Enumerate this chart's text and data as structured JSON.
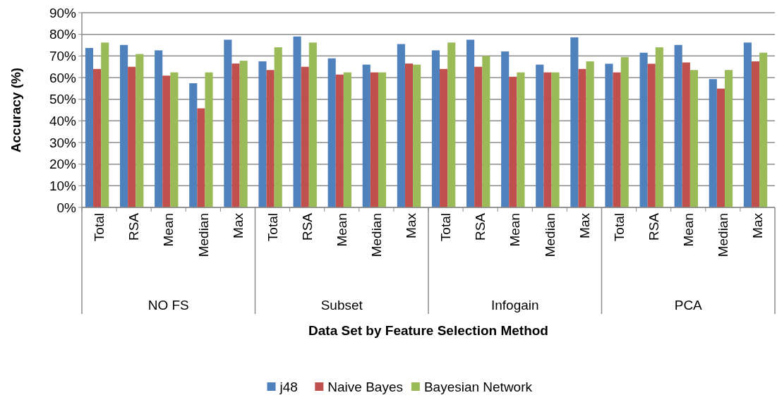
{
  "chart_data": {
    "type": "bar",
    "xlabel": "Data Set by Feature Selection Method",
    "ylabel": "Accuracy (%)",
    "categories": [
      "Total",
      "RSA",
      "Mean",
      "Median",
      "Max",
      "Total",
      "RSA",
      "Mean",
      "Median",
      "Max",
      "Total",
      "RSA",
      "Mean",
      "Median",
      "Max",
      "Total",
      "RSA",
      "Mean",
      "Median",
      "Max"
    ],
    "annotations": [
      "NO FS",
      "Subset",
      "Infogain",
      "PCA"
    ],
    "series": [
      {
        "name": "j48",
        "color": "#4f81bd",
        "values": [
          73.7,
          75.1,
          72.6,
          57.4,
          77.5,
          67.5,
          79.0,
          68.9,
          66.0,
          75.5,
          72.6,
          77.5,
          72.1,
          66.0,
          78.6,
          66.4,
          71.5,
          75.1,
          59.3,
          76.2
        ]
      },
      {
        "name": "Naive Bayes",
        "color": "#c0504d",
        "values": [
          64.0,
          65.0,
          60.9,
          45.8,
          66.5,
          63.5,
          65.0,
          61.4,
          62.4,
          66.5,
          64.0,
          65.0,
          60.4,
          62.4,
          64.0,
          62.4,
          66.4,
          67.0,
          54.9,
          67.5
        ]
      },
      {
        "name": "Bayesian Network",
        "color": "#9bbb59",
        "values": [
          76.2,
          70.9,
          62.4,
          62.4,
          67.8,
          74.0,
          76.2,
          62.4,
          62.4,
          66.0,
          76.2,
          70.0,
          62.4,
          62.4,
          67.5,
          69.5,
          74.0,
          63.5,
          63.5,
          71.5
        ]
      }
    ],
    "ylim": [
      0,
      90
    ],
    "yticks": [
      {
        "value": 0,
        "label": "0%"
      },
      {
        "value": 10,
        "label": "10%"
      },
      {
        "value": 20,
        "label": "20%"
      },
      {
        "value": 30,
        "label": "30%"
      },
      {
        "value": 40,
        "label": "40%"
      },
      {
        "value": 50,
        "label": "50%"
      },
      {
        "value": 60,
        "label": "60%"
      },
      {
        "value": 70,
        "label": "70%"
      },
      {
        "value": 80,
        "label": "80%"
      },
      {
        "value": 90,
        "label": "90%"
      }
    ],
    "grid": "y",
    "legend": "bottom"
  }
}
